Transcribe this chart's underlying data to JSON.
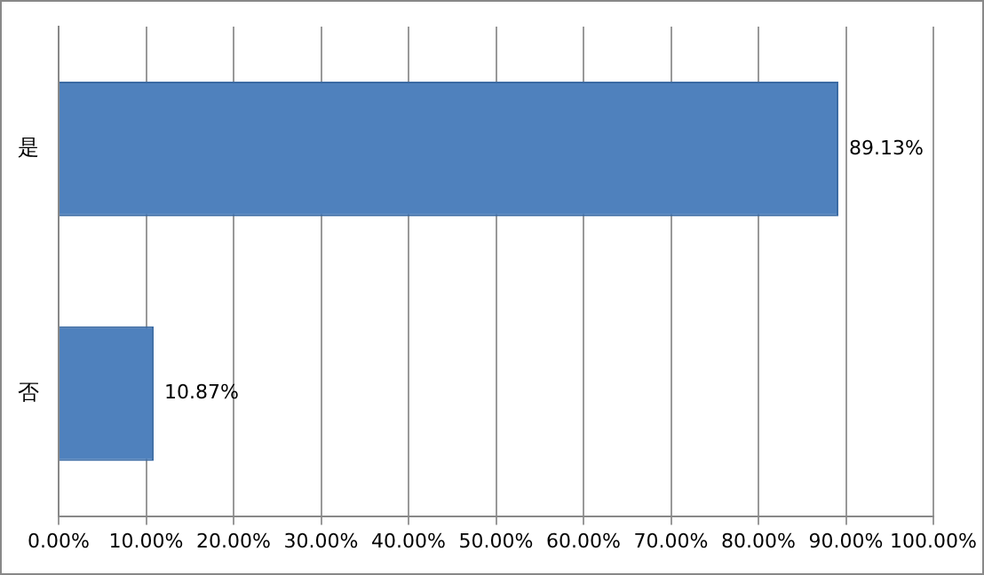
{
  "chart_data": {
    "type": "bar",
    "orientation": "horizontal",
    "categories": [
      "是",
      "否"
    ],
    "values": [
      89.13,
      10.87
    ],
    "color": "#4f81bd",
    "value_labels": [
      "89.13%",
      "10.87%"
    ],
    "xlim": [
      0,
      100
    ],
    "xticks": [
      {
        "value": 0,
        "label": "0.00%"
      },
      {
        "value": 10,
        "label": "10.00%"
      },
      {
        "value": 20,
        "label": "20.00%"
      },
      {
        "value": 30,
        "label": "30.00%"
      },
      {
        "value": 40,
        "label": "40.00%"
      },
      {
        "value": 50,
        "label": "50.00%"
      },
      {
        "value": 60,
        "label": "60.00%"
      },
      {
        "value": 70,
        "label": "70.00%"
      },
      {
        "value": 80,
        "label": "80.00%"
      },
      {
        "value": 90,
        "label": "90.00%"
      },
      {
        "value": 100,
        "label": "100.00%"
      }
    ],
    "grid": "x",
    "legend": false
  }
}
